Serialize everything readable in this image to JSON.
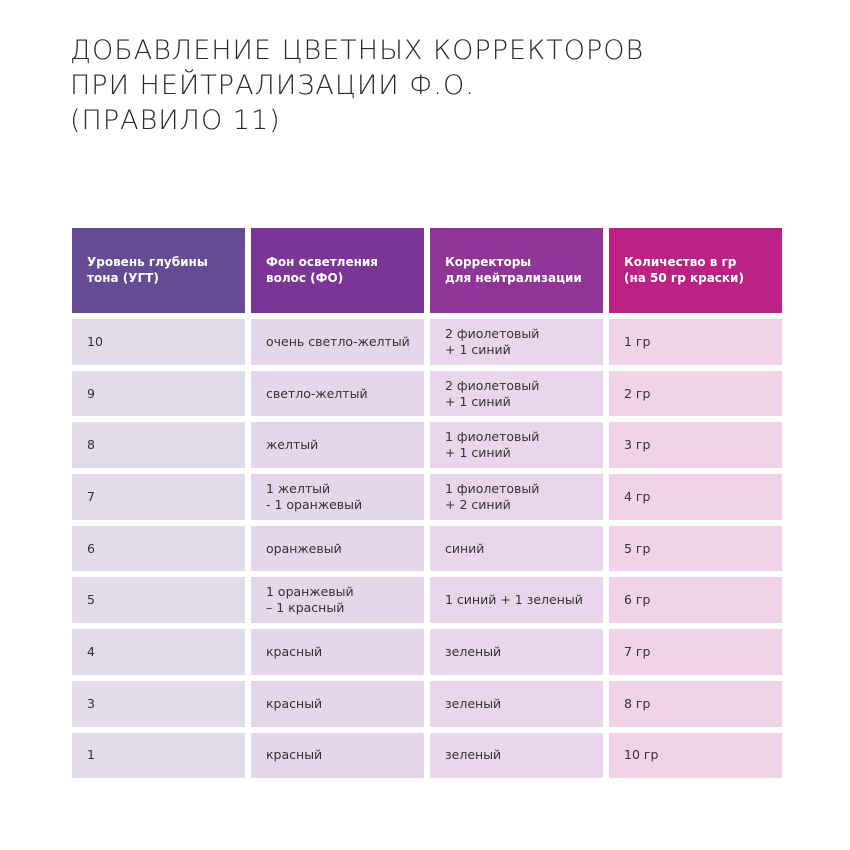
{
  "title": [
    "ДОБАВЛЕНИЕ ЦВЕТНЫХ КОРРЕКТОРОВ",
    "ПРИ НЕЙТРАЛИЗАЦИИ Ф.О.",
    "(ПРАВИЛО 11)"
  ],
  "table": {
    "headers": [
      "Уровень глубины\nтона (УГТ)",
      "Фон осветления\nволос (ФО)",
      "Корректоры\nдля нейтрализации",
      "Количество в гр\n(на 50 гр краски)"
    ],
    "rows": [
      [
        "10",
        "очень светло-желтый",
        "2 фиолетовый\n+ 1 синий",
        "1 гр"
      ],
      [
        "9",
        "светло-желтый",
        "2 фиолетовый\n+ 1 синий",
        "2 гр"
      ],
      [
        "8",
        "желтый",
        "1 фиолетовый\n+ 1 синий",
        "3 гр"
      ],
      [
        "7",
        "1 желтый\n- 1 оранжевый",
        "1 фиолетовый\n+ 2 синий",
        "4 гр"
      ],
      [
        "6",
        "оранжевый",
        "синий",
        "5 гр"
      ],
      [
        "5",
        "1 оранжевый\n– 1 красный",
        "1 синий + 1 зеленый",
        "6 гр"
      ],
      [
        "4",
        "красный",
        "зеленый",
        "7 гр"
      ],
      [
        "3",
        "красный",
        "зеленый",
        "8 гр"
      ],
      [
        "1",
        "красный",
        "зеленый",
        "10 гр"
      ]
    ]
  },
  "colors": {
    "header": [
      "#654b94",
      "#7a3595",
      "#8f3596",
      "#bc2184"
    ],
    "cells": [
      "#e2dbea",
      "#e5d6ea",
      "#ead6ea",
      "#f0d3e6"
    ]
  }
}
